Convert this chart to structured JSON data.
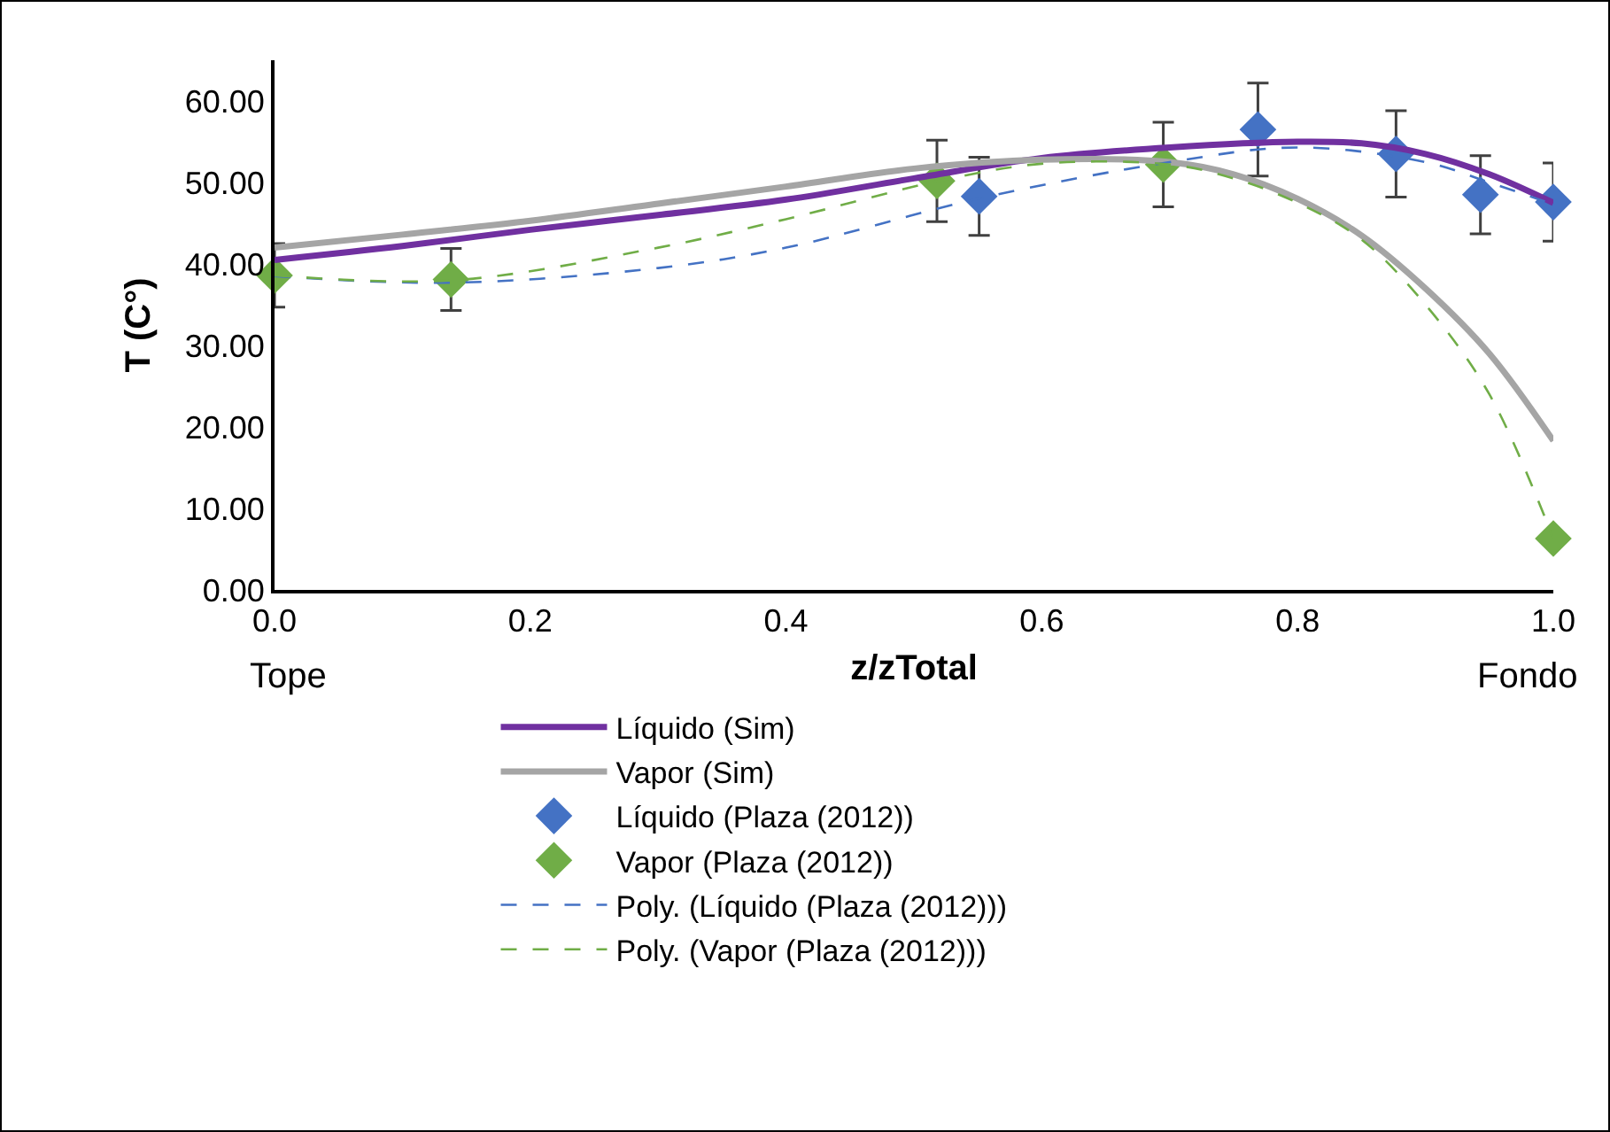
{
  "chart_data": {
    "type": "line",
    "xlabel": "z/zTotal",
    "ylabel": "T (C°)",
    "xlim": [
      0,
      1
    ],
    "xticks": [
      {
        "value": 0,
        "label": "0.0"
      },
      {
        "value": 0.2,
        "label": "0.2"
      },
      {
        "value": 0.4,
        "label": "0.4"
      },
      {
        "value": 0.6,
        "label": "0.6"
      },
      {
        "value": 0.8,
        "label": "0.8"
      },
      {
        "value": 1,
        "label": "1.0"
      }
    ],
    "ylim": [
      0,
      65
    ],
    "yticks": [
      {
        "value": 0,
        "label": "0.00"
      },
      {
        "value": 10,
        "label": "10.00"
      },
      {
        "value": 20,
        "label": "20.00"
      },
      {
        "value": 30,
        "label": "30.00"
      },
      {
        "value": 40,
        "label": "40.00"
      },
      {
        "value": 50,
        "label": "50.00"
      },
      {
        "value": 60,
        "label": "60.00"
      }
    ],
    "grid": false,
    "legend": "bottom",
    "annotations": [
      "Tope",
      "Fondo"
    ],
    "series": [
      {
        "name": "Líquido (Sim)",
        "color": "#7030a0",
        "line_style": "solid",
        "marker": "none",
        "x": [
          0,
          0.1,
          0.2,
          0.3,
          0.4,
          0.5,
          0.6,
          0.7,
          0.8,
          0.85,
          0.9,
          0.95,
          1
        ],
        "values": [
          40.5,
          42.2,
          44.2,
          46,
          47.9,
          50.5,
          53,
          54.3,
          55,
          54.8,
          53.5,
          51,
          47.5
        ]
      },
      {
        "name": "Vapor (Sim)",
        "color": "#a5a5a5",
        "line_style": "solid",
        "marker": "none",
        "x": [
          0,
          0.1,
          0.2,
          0.3,
          0.4,
          0.5,
          0.6,
          0.7,
          0.75,
          0.8,
          0.85,
          0.9,
          0.95,
          1
        ],
        "values": [
          42,
          43.6,
          45.3,
          47.4,
          49.5,
          51.7,
          52.8,
          52.5,
          51,
          48,
          43.5,
          37,
          29,
          18.3
        ]
      },
      {
        "name": "Líquido (Plaza (2012))",
        "type": "scatter",
        "color": "#4472c4",
        "marker": "diamond",
        "x": [
          0.551,
          0.769,
          0.877,
          0.943,
          1
        ],
        "values": [
          48.3,
          56.5,
          53.5,
          48.5,
          47.6
        ],
        "errors": [
          4.8,
          5.7,
          5.3,
          4.8,
          4.8
        ]
      },
      {
        "name": "Vapor (Plaza (2012))",
        "type": "scatter",
        "color": "#70ad47",
        "marker": "diamond",
        "x": [
          0,
          0.138,
          0.518,
          0.695,
          1
        ],
        "values": [
          38.6,
          38.1,
          50.2,
          52.2,
          6.3
        ],
        "errors": [
          3.9,
          3.8,
          5,
          5.2,
          null
        ]
      },
      {
        "name": "Poly. (Líquido (Plaza (2012)))",
        "color": "#4472c4",
        "line_style": "dashed",
        "marker": "none",
        "x": [
          0,
          0.138,
          0.3,
          0.4,
          0.55,
          0.7,
          0.8,
          0.9,
          0.95,
          1
        ],
        "values": [
          38.5,
          37.7,
          39.5,
          42,
          48,
          52.5,
          54.3,
          52.5,
          50,
          47.3
        ]
      },
      {
        "name": "Poly. (Vapor (Plaza (2012)))",
        "color": "#70ad47",
        "line_style": "dashed",
        "marker": "none",
        "x": [
          0,
          0.14,
          0.3,
          0.4,
          0.52,
          0.6,
          0.7,
          0.75,
          0.8,
          0.85,
          0.9,
          0.95,
          1
        ],
        "values": [
          38.6,
          38,
          42,
          45.5,
          50.2,
          52.3,
          52.2,
          50.5,
          47.5,
          43,
          35,
          24,
          6.3
        ]
      }
    ]
  }
}
